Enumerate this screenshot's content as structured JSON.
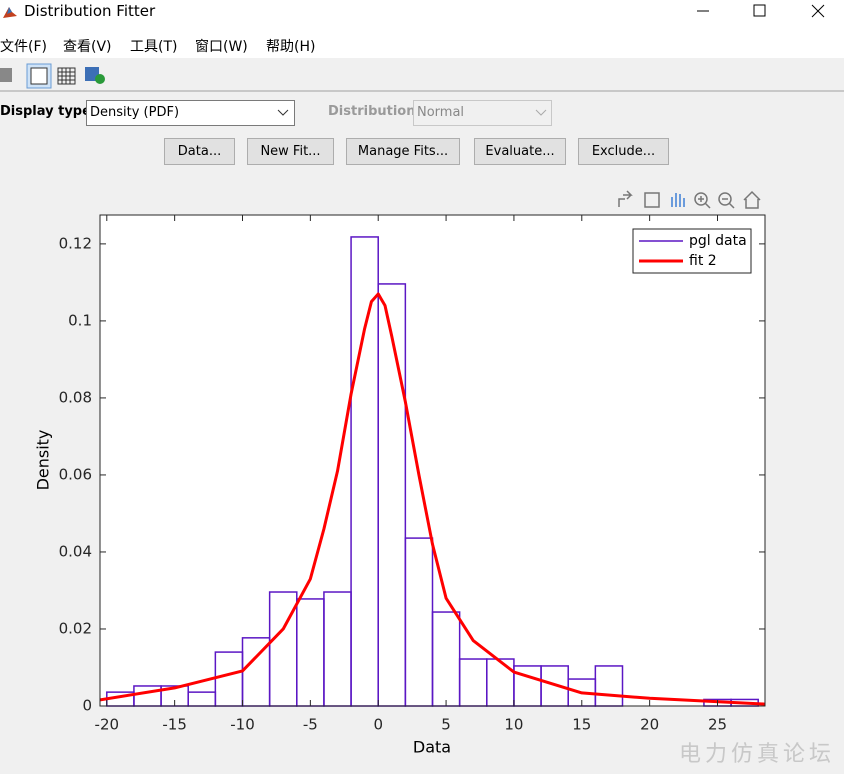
{
  "window_title": "Distribution Fitter",
  "menu": [
    "文件(F)",
    "查看(V)",
    "工具(T)",
    "窗口(W)",
    "帮助(H)"
  ],
  "controls": {
    "display_type_label": "Display type:",
    "display_type_value": "Density (PDF)",
    "distribution_label": "Distribution:",
    "distribution_value": "Normal"
  },
  "buttons": [
    "Data...",
    "New Fit...",
    "Manage Fits...",
    "Evaluate...",
    "Exclude..."
  ],
  "chart_data": {
    "type": "histogram",
    "x_label": "Data",
    "y_label": "Density",
    "xlim": [
      -20.5,
      28.5
    ],
    "ylim": [
      0,
      0.1275
    ],
    "xticks": [
      -20,
      -15,
      -10,
      -5,
      0,
      5,
      10,
      15,
      20,
      25
    ],
    "yticks": [
      0,
      0.02,
      0.04,
      0.06,
      0.08,
      0.1,
      0.12
    ],
    "legend": "northeast",
    "series": [
      {
        "name": "pgl data",
        "type": "histogram",
        "color": "#5b17c4",
        "bins": [
          -20,
          -18,
          -16,
          -14,
          -12,
          -10,
          -8,
          -6,
          -4,
          -2,
          0,
          2,
          4,
          6,
          8,
          10,
          12,
          14,
          16,
          18,
          20,
          22,
          24,
          26,
          28
        ],
        "values": [
          0.0036,
          0.0052,
          0.0052,
          0.0036,
          0.014,
          0.0177,
          0.0296,
          0.0278,
          0.0296,
          0.1218,
          0.1096,
          0.0436,
          0.0244,
          0.0122,
          0.0122,
          0.0104,
          0.0104,
          0.007,
          0.0104,
          0,
          0,
          0,
          0.0017,
          0.0017
        ]
      },
      {
        "name": "fit 2",
        "type": "line",
        "color": "#ff0000",
        "x": [
          -20.5,
          -15,
          -10,
          -7,
          -5,
          -4,
          -3,
          -2,
          -1,
          -0.5,
          0,
          0.5,
          1,
          2,
          3,
          4,
          5,
          7,
          10,
          15,
          20,
          28.5
        ],
        "values": [
          0.0016,
          0.0047,
          0.0091,
          0.02,
          0.033,
          0.046,
          0.061,
          0.081,
          0.098,
          0.105,
          0.107,
          0.104,
          0.096,
          0.079,
          0.06,
          0.042,
          0.028,
          0.017,
          0.0088,
          0.0034,
          0.002,
          0.0005
        ]
      }
    ]
  },
  "watermark": "电力仿真论坛"
}
